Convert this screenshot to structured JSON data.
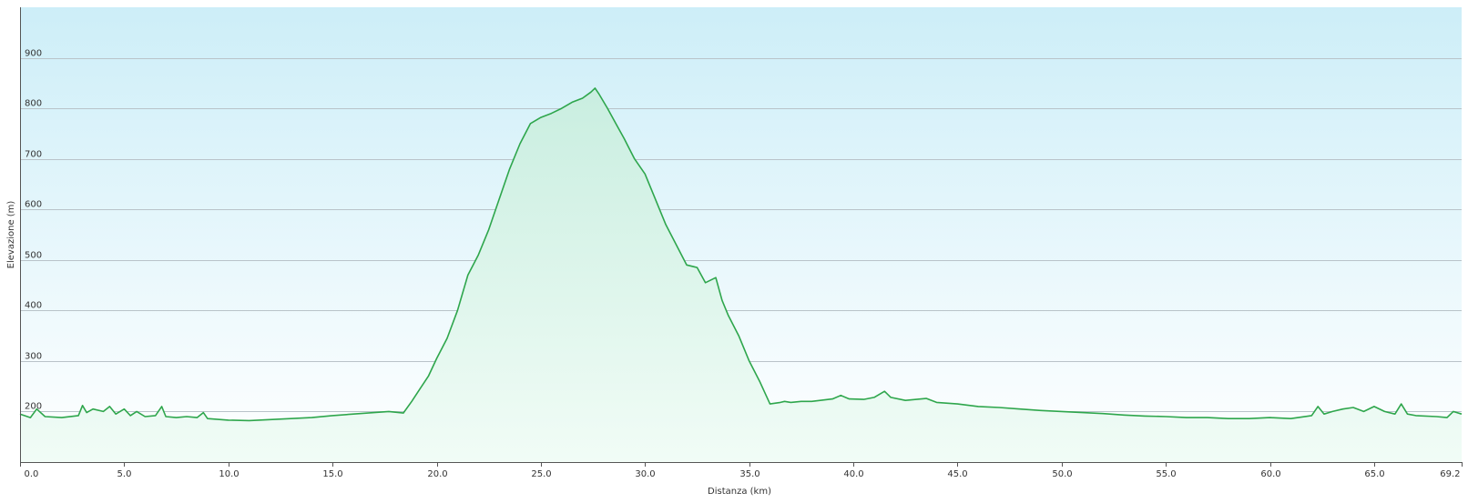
{
  "chart_data": {
    "type": "area",
    "title": "",
    "xlabel": "Distanza  (km)",
    "ylabel": "Elevazione (m)",
    "xlim": [
      0.0,
      69.2
    ],
    "ylim": [
      100,
      1000
    ],
    "x_ticks": [
      "0.0",
      "5.0",
      "10.0",
      "15.0",
      "20.0",
      "25.0",
      "30.0",
      "35.0",
      "40.0",
      "45.0",
      "50.0",
      "55.0",
      "60.0",
      "65.0",
      "69.2"
    ],
    "x_tick_values": [
      0,
      5,
      10,
      15,
      20,
      25,
      30,
      35,
      40,
      45,
      50,
      55,
      60,
      65,
      69.2
    ],
    "y_ticks": [
      "200",
      "300",
      "400",
      "500",
      "600",
      "700",
      "800",
      "900"
    ],
    "y_tick_values": [
      200,
      300,
      400,
      500,
      600,
      700,
      800,
      900
    ],
    "grid": true,
    "colors": {
      "line": "#2ea64c",
      "fill_top": "#c9eee0",
      "fill_bottom": "#f1fcf6",
      "bg_top": "#cdeef8",
      "bg_bottom": "#ffffff",
      "grid": "#b9c3c9"
    },
    "series": [
      {
        "x": [
          0.0,
          0.5,
          0.8,
          1.2,
          2.0,
          2.8,
          3.0,
          3.2,
          3.5,
          4.0,
          4.3,
          4.6,
          5.0,
          5.3,
          5.6,
          6.0,
          6.5,
          6.8,
          7.0,
          7.5,
          8.0,
          8.5,
          8.8,
          9.0,
          10.0,
          11.0,
          12.0,
          13.0,
          14.0,
          15.0,
          16.0,
          17.0,
          17.7,
          18.4,
          18.8,
          19.2,
          19.6,
          20.0,
          20.5,
          21.0,
          21.5,
          22.0,
          22.5,
          23.0,
          23.5,
          24.0,
          24.5,
          25.0,
          25.5,
          26.0,
          26.5,
          27.0,
          27.4,
          27.6,
          27.8,
          28.2,
          28.6,
          29.0,
          29.5,
          30.0,
          30.5,
          31.0,
          31.5,
          32.0,
          32.5,
          32.9,
          33.4,
          33.7,
          34.0,
          34.5,
          35.0,
          35.5,
          36.0,
          36.5,
          36.7,
          37.0,
          37.5,
          38.0,
          39.0,
          39.4,
          39.8,
          40.5,
          41.0,
          41.5,
          41.8,
          42.5,
          43.5,
          44.0,
          45.0,
          46.0,
          47.0,
          48.0,
          49.0,
          50.0,
          51.0,
          52.0,
          53.0,
          54.0,
          55.0,
          56.0,
          57.0,
          58.0,
          59.0,
          60.0,
          61.0,
          62.0,
          62.3,
          62.6,
          63.0,
          63.5,
          64.0,
          64.5,
          65.0,
          65.5,
          66.0,
          66.3,
          66.6,
          67.0,
          68.0,
          68.5,
          68.8,
          69.2
        ],
        "y": [
          195,
          188,
          205,
          190,
          188,
          192,
          212,
          198,
          205,
          200,
          210,
          195,
          205,
          192,
          200,
          190,
          192,
          210,
          190,
          188,
          190,
          188,
          198,
          186,
          183,
          182,
          184,
          186,
          188,
          192,
          195,
          198,
          200,
          197,
          220,
          245,
          270,
          305,
          345,
          400,
          470,
          510,
          560,
          620,
          680,
          730,
          770,
          782,
          790,
          800,
          812,
          820,
          832,
          840,
          828,
          800,
          770,
          740,
          700,
          670,
          620,
          570,
          530,
          490,
          485,
          455,
          465,
          420,
          390,
          350,
          300,
          260,
          215,
          218,
          220,
          218,
          220,
          220,
          225,
          232,
          225,
          224,
          228,
          240,
          228,
          222,
          226,
          218,
          215,
          210,
          208,
          205,
          202,
          200,
          198,
          196,
          193,
          191,
          190,
          188,
          188,
          186,
          186,
          188,
          186,
          192,
          210,
          195,
          200,
          205,
          208,
          200,
          210,
          200,
          195,
          215,
          195,
          192,
          190,
          188,
          200,
          195
        ]
      }
    ]
  }
}
